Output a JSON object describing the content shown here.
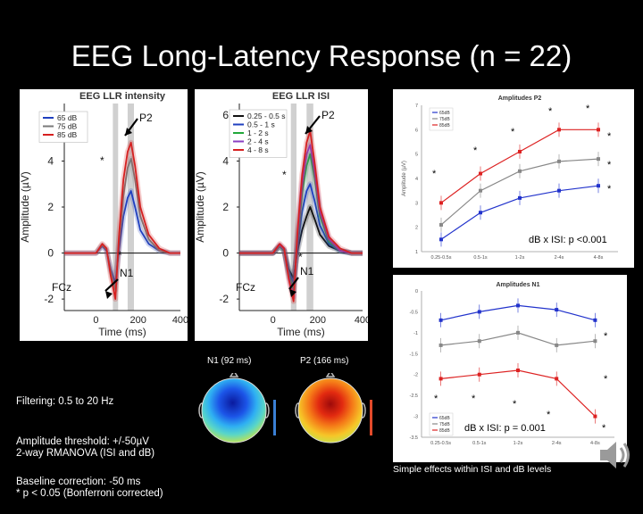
{
  "slide": {
    "title": "EEG Long-Latency Response (n = 22)",
    "notes_filtering": [
      "Filtering: 0.5 to 20 Hz",
      "Amplitude threshold: +/-50µV",
      "Baseline correction: -50 ms"
    ],
    "notes_stats": [
      "2-way RMANOVA (ISI and dB)",
      "* p < 0.05 (Bonferroni corrected)"
    ],
    "footer": "Simple effects within ISI and dB levels",
    "topo_n1_label": "N1 (92 ms)",
    "topo_p2_label": "P2 (166 ms)"
  },
  "chart_data": [
    {
      "type": "line",
      "title": "EEG LLR intensity",
      "xlabel": "Time (ms)",
      "ylabel": "Amplitude (µV)",
      "xlim": [
        -150,
        400
      ],
      "ylim": [
        -2.5,
        6.5
      ],
      "xticks": [
        0,
        200,
        400
      ],
      "yticks": [
        -2,
        0,
        2,
        4,
        6
      ],
      "channel_label": "FCz",
      "annotations": {
        "p2": "P2",
        "n1": "N1",
        "star": "*"
      },
      "shaded_windows_ms": [
        [
          80,
          105
        ],
        [
          150,
          180
        ]
      ],
      "series": [
        {
          "name": "65 dB",
          "color": "#1f3fbf",
          "x": [
            -150,
            -100,
            -50,
            0,
            30,
            50,
            70,
            92,
            110,
            130,
            150,
            166,
            185,
            210,
            250,
            300,
            350,
            400
          ],
          "y": [
            0,
            0,
            0,
            0,
            0.3,
            0.1,
            -0.7,
            -1.3,
            0.2,
            1.6,
            2.4,
            2.7,
            2.0,
            1.0,
            0.4,
            0.1,
            0,
            0
          ]
        },
        {
          "name": "75 dB",
          "color": "#7a7a7a",
          "x": [
            -150,
            -100,
            -50,
            0,
            30,
            50,
            70,
            92,
            110,
            130,
            150,
            166,
            185,
            210,
            250,
            300,
            350,
            400
          ],
          "y": [
            0,
            0,
            0,
            0,
            0.35,
            0.15,
            -0.8,
            -1.6,
            0.6,
            2.5,
            3.7,
            4.1,
            3.2,
            1.6,
            0.6,
            0.1,
            0,
            0
          ]
        },
        {
          "name": "85 dB",
          "color": "#d62020",
          "x": [
            -150,
            -100,
            -50,
            0,
            30,
            50,
            70,
            92,
            110,
            130,
            150,
            166,
            185,
            210,
            250,
            300,
            350,
            400
          ],
          "y": [
            0,
            0,
            0,
            0,
            0.4,
            0.2,
            -1.0,
            -2.0,
            0.9,
            3.2,
            4.4,
            4.8,
            3.8,
            2.0,
            0.8,
            0.2,
            0,
            0
          ]
        }
      ]
    },
    {
      "type": "line",
      "title": "EEG LLR ISI",
      "xlabel": "Time (ms)",
      "ylabel": "Amplitude (µV)",
      "xlim": [
        -150,
        400
      ],
      "ylim": [
        -2.5,
        6.5
      ],
      "xticks": [
        0,
        200,
        400
      ],
      "yticks": [
        -2,
        0,
        2,
        4,
        6
      ],
      "channel_label": "FCz",
      "annotations": {
        "p2": "P2",
        "n1": "N1",
        "star": "*"
      },
      "shaded_windows_ms": [
        [
          80,
          105
        ],
        [
          150,
          180
        ]
      ],
      "series": [
        {
          "name": "0.25 - 0.5 s",
          "color": "#111111",
          "x": [
            -150,
            -100,
            -50,
            0,
            30,
            50,
            70,
            92,
            110,
            130,
            150,
            166,
            185,
            210,
            250,
            300,
            350,
            400
          ],
          "y": [
            0,
            0,
            0,
            0,
            0.3,
            0.1,
            -0.7,
            -1.1,
            0.1,
            1.0,
            1.6,
            2.0,
            1.5,
            0.8,
            0.3,
            0.1,
            0,
            0
          ]
        },
        {
          "name": "0.5 - 1 s",
          "color": "#1f3fbf",
          "x": [
            -150,
            -100,
            -50,
            0,
            30,
            50,
            70,
            92,
            110,
            130,
            150,
            166,
            185,
            210,
            250,
            300,
            350,
            400
          ],
          "y": [
            0,
            0,
            0,
            0,
            0.3,
            0.1,
            -0.8,
            -1.3,
            0.3,
            1.8,
            2.7,
            3.0,
            2.3,
            1.2,
            0.4,
            0.1,
            0,
            0
          ]
        },
        {
          "name": "1 - 2 s",
          "color": "#22a83a",
          "x": [
            -150,
            -100,
            -50,
            0,
            30,
            50,
            70,
            92,
            110,
            130,
            150,
            166,
            185,
            210,
            250,
            300,
            350,
            400
          ],
          "y": [
            0,
            0,
            0,
            0,
            0.3,
            0.1,
            -0.9,
            -1.6,
            0.6,
            2.6,
            3.8,
            4.3,
            3.3,
            1.6,
            0.5,
            0.1,
            0,
            0
          ]
        },
        {
          "name": "2 - 4 s",
          "color": "#8a3fc2",
          "x": [
            -150,
            -100,
            -50,
            0,
            30,
            50,
            70,
            92,
            110,
            130,
            150,
            166,
            185,
            210,
            250,
            300,
            350,
            400
          ],
          "y": [
            0,
            0,
            0,
            0,
            0.35,
            0.15,
            -1.0,
            -1.9,
            0.8,
            3.0,
            4.3,
            4.7,
            3.6,
            1.8,
            0.6,
            0.1,
            0,
            0
          ]
        },
        {
          "name": "4 - 8 s",
          "color": "#d62020",
          "x": [
            -150,
            -100,
            -50,
            0,
            30,
            50,
            70,
            92,
            110,
            130,
            150,
            166,
            185,
            210,
            250,
            300,
            350,
            400
          ],
          "y": [
            0,
            0,
            0,
            0,
            0.4,
            0.2,
            -1.1,
            -2.1,
            1.0,
            3.4,
            4.8,
            5.3,
            4.0,
            2.0,
            0.7,
            0.2,
            0,
            0
          ]
        }
      ]
    },
    {
      "type": "line",
      "title": "Amplitudes P2",
      "ylabel": "Amplitude (µV)",
      "categories": [
        "0.25-0.5s",
        "0.5-1s",
        "1-2s",
        "2-4s",
        "4-8s"
      ],
      "ylim": [
        1,
        7
      ],
      "yticks": [
        1,
        2,
        3,
        4,
        5,
        6,
        7
      ],
      "annotation": "dB x ISI: p <0.001",
      "star": "*",
      "series": [
        {
          "name": "65dB",
          "color": "#2233cc",
          "values": [
            1.5,
            2.6,
            3.2,
            3.5,
            3.7
          ]
        },
        {
          "name": "75dB",
          "color": "#888888",
          "values": [
            2.1,
            3.5,
            4.3,
            4.7,
            4.8
          ]
        },
        {
          "name": "85dB",
          "color": "#dd2222",
          "values": [
            3.0,
            4.2,
            5.1,
            6.0,
            6.0
          ]
        }
      ]
    },
    {
      "type": "line",
      "title": "Amplitudes N1",
      "categories": [
        "0.25-0.5s",
        "0.5-1s",
        "1-2s",
        "2-4s",
        "4-8s"
      ],
      "ylim": [
        -3.5,
        0
      ],
      "yticks": [
        0,
        -0.5,
        -1,
        -1.5,
        -2,
        -2.5,
        -3,
        -3.5
      ],
      "annotation": "dB x ISI: p = 0.001",
      "star": "*",
      "series": [
        {
          "name": "65dB",
          "color": "#2233cc",
          "values": [
            -0.7,
            -0.5,
            -0.35,
            -0.45,
            -0.7
          ]
        },
        {
          "name": "75dB",
          "color": "#888888",
          "values": [
            -1.3,
            -1.2,
            -1.0,
            -1.3,
            -1.2
          ]
        },
        {
          "name": "85dB",
          "color": "#dd2222",
          "values": [
            -2.1,
            -2.0,
            -1.9,
            -2.1,
            -3.0
          ]
        }
      ]
    }
  ]
}
